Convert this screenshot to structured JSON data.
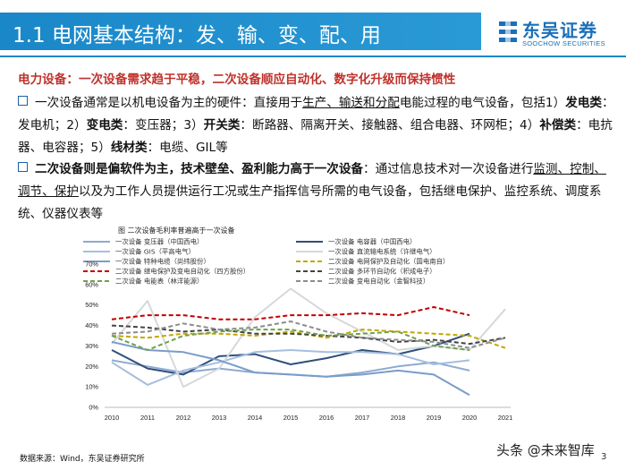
{
  "header": {
    "title": "1.1 电网基本结构：发、输、变、配、用"
  },
  "logo": {
    "name": "东吴证券",
    "name_en": "SOOCHOW SECURITIES"
  },
  "subtitle": "电力设备：一次设备需求趋于平稳，二次设备顺应自动化、数字化升级而保持惯性",
  "para1": {
    "s1": "一次设备通常是以机电设备为主的硬件：直接用于",
    "u1": "生产、输送和分配",
    "s2": "电能过程的电气设备，包括1）",
    "b1": "发电类",
    "s3": "：发电机；2）",
    "b2": "变电类",
    "s4": "：变压器；3）",
    "b3": "开关类",
    "s5": "：断路器、隔离开关、接触器、组合电器、环网柜；4）",
    "b4": "补偿类",
    "s6": "：电抗器、电容器；5）",
    "b5": "线材类",
    "s7": "：电缆、GIL等"
  },
  "para2": {
    "b1": "二次设备则是偏软件为主，技术壁垒、盈利能力高于一次设备",
    "s1": "：通过信息技术对一次设备进行",
    "u1": "监测、控制、调节、保护",
    "s2": "以及为工作人员提供运行工况或生产指挥信号所需的电气设备，包括继电保护、监控系统、调度系统、仪器仪表等"
  },
  "chart_title": "图  二次设备毛利率普遍高于一次设备",
  "chart_data": {
    "type": "line",
    "categories": [
      "2010",
      "2011",
      "2012",
      "2013",
      "2014",
      "2015",
      "2016",
      "2017",
      "2018",
      "2019",
      "2020",
      "2021"
    ],
    "ylim": [
      0,
      70
    ],
    "yticks": [
      "0%",
      "10%",
      "20%",
      "30%",
      "40%",
      "50%",
      "60%",
      "70%"
    ],
    "series": [
      {
        "name": "一次设备 变压器（中国西电）",
        "color": "#8eaad0",
        "dash": "solid",
        "values": [
          23,
          20,
          17,
          19,
          17,
          16,
          15,
          17,
          20,
          22,
          18,
          null
        ]
      },
      {
        "name": "一次设备 电容器（中国西电）",
        "color": "#2f4f7a",
        "dash": "solid",
        "values": [
          28,
          19,
          16,
          25,
          26,
          21,
          24,
          28,
          26,
          30,
          36,
          null
        ]
      },
      {
        "name": "一次设备 GIS（平高电气）",
        "color": "#a6bedf",
        "dash": "solid",
        "values": [
          22,
          11,
          18,
          22,
          27,
          28,
          27,
          27,
          26,
          21,
          23,
          null
        ]
      },
      {
        "name": "一次设备 直流输电系统（许继电气）",
        "color": "#d5d8dc",
        "dash": "solid",
        "values": [
          31,
          52,
          10,
          19,
          44,
          58,
          46,
          37,
          28,
          30,
          28,
          48
        ]
      },
      {
        "name": "一次设备 特种电缆（尚纬股份）",
        "color": "#7a9cc9",
        "dash": "solid",
        "values": [
          32,
          28,
          27,
          23,
          17,
          16,
          15,
          16,
          18,
          16,
          6,
          null
        ]
      },
      {
        "name": "二次设备 电网保护及自动化（国电南自）",
        "color": "#c5a500",
        "dash": "dash",
        "values": [
          35,
          34,
          36,
          36,
          35,
          37,
          34,
          38,
          37,
          36,
          35,
          29
        ]
      },
      {
        "name": "二次设备 继电保护及变电自动化（四方股份）",
        "color": "#c00000",
        "dash": "dash",
        "values": [
          43,
          45,
          45,
          43,
          43,
          45,
          45,
          46,
          45,
          49,
          45,
          null
        ]
      },
      {
        "name": "二次设备 多环节自动化（积成电子）",
        "color": "#444444",
        "dash": "dash",
        "values": [
          40,
          39,
          37,
          38,
          36,
          36,
          35,
          34,
          32,
          33,
          31,
          34
        ]
      },
      {
        "name": "二次设备 电能表（林洋能源）",
        "color": "#70a04a",
        "dash": "dash",
        "values": [
          35,
          28,
          35,
          37,
          38,
          38,
          35,
          36,
          37,
          30,
          28,
          null
        ]
      },
      {
        "name": "二次设备 变电自动化（金智科技）",
        "color": "#8c8c8c",
        "dash": "dash",
        "values": [
          36,
          37,
          41,
          38,
          39,
          42,
          37,
          34,
          33,
          32,
          29,
          34
        ]
      }
    ]
  },
  "source": "数据来源：Wind，东吴证券研究所",
  "page_number": "3",
  "watermark": "头条 @未来智库"
}
